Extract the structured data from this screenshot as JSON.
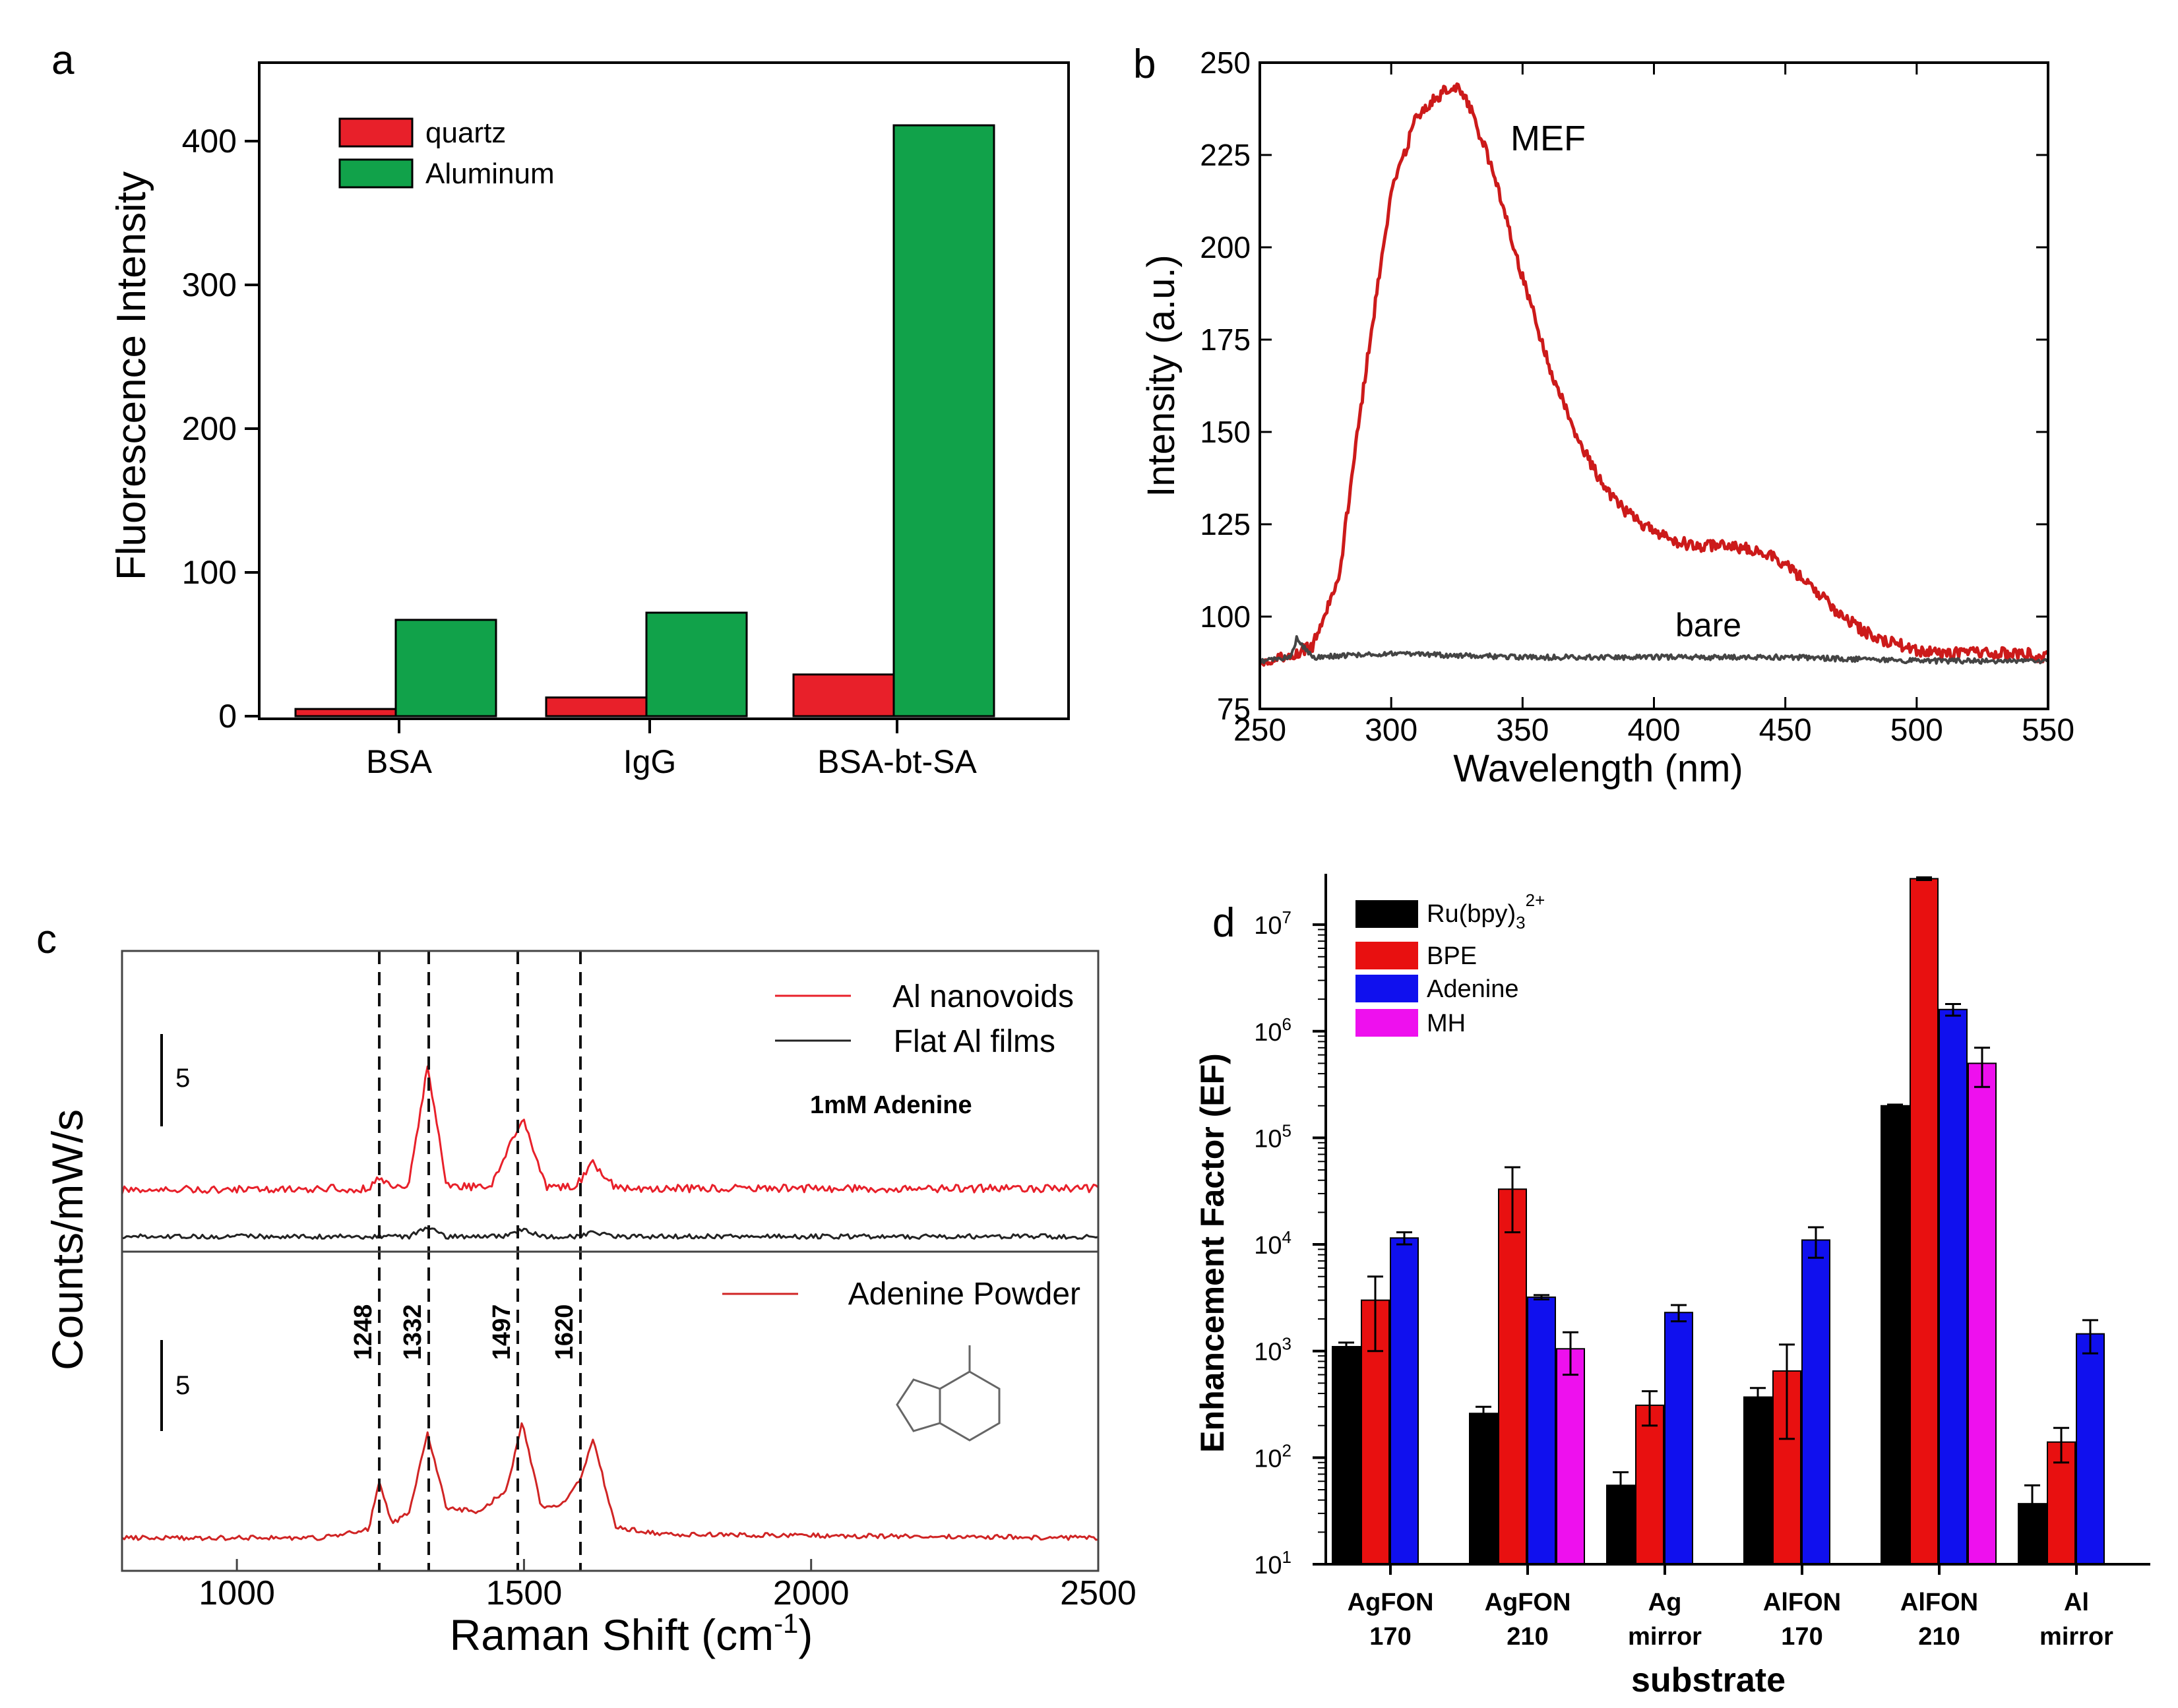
{
  "chart_data": [
    {
      "panel": "a",
      "type": "bar",
      "title": "",
      "xlabel": "",
      "ylabel": "Fluorescence Intensity",
      "ylim": [
        0,
        450
      ],
      "yticks": [
        0,
        100,
        200,
        300,
        400
      ],
      "categories": [
        "BSA",
        "IgG",
        "BSA-bt-SA"
      ],
      "series": [
        {
          "name": "quartz",
          "color": "#e8202a",
          "values": [
            5,
            13,
            29
          ]
        },
        {
          "name": "Aluminum",
          "color": "#11a24a",
          "values": [
            67,
            72,
            411
          ]
        }
      ],
      "legend": "top-left"
    },
    {
      "panel": "b",
      "type": "line",
      "xlabel": "Wavelength (nm)",
      "ylabel": "Intensity (a.u.)",
      "xlim": [
        250,
        550
      ],
      "ylim": [
        75,
        250
      ],
      "xticks": [
        250,
        300,
        350,
        400,
        450,
        500,
        550
      ],
      "yticks": [
        75,
        100,
        125,
        150,
        175,
        200,
        225,
        250
      ],
      "series": [
        {
          "name": "MEF",
          "color": "#cc1a1a",
          "x": [
            250,
            260,
            270,
            280,
            290,
            300,
            310,
            320,
            325,
            330,
            340,
            350,
            360,
            370,
            380,
            390,
            400,
            410,
            420,
            430,
            440,
            450,
            460,
            470,
            480,
            490,
            500,
            510,
            520,
            530,
            540,
            550
          ],
          "y": [
            88,
            89,
            92,
            110,
            165,
            215,
            236,
            242,
            243,
            238,
            218,
            192,
            168,
            150,
            136,
            128,
            123,
            120,
            119,
            119,
            118,
            114,
            108,
            101,
            96,
            93,
            91,
            90,
            90,
            90,
            90,
            89
          ]
        },
        {
          "name": "bare",
          "color": "#444444",
          "x": [
            250,
            262,
            264,
            270,
            300,
            350,
            400,
            450,
            500,
            550
          ],
          "y": [
            88,
            89,
            94,
            89,
            90,
            89,
            89,
            89,
            88,
            88
          ]
        }
      ]
    },
    {
      "panel": "c",
      "type": "line",
      "xlabel": "Raman Shift (cm",
      "xlabel_sup": "-1",
      "xlabel_close": ")",
      "ylabel": "Counts/mW/s",
      "xlim": [
        800,
        2500
      ],
      "xticks": [
        1000,
        1500,
        2000,
        2500
      ],
      "scale_bar_label": "5",
      "annotation": "1mM Adenine",
      "peaks": [
        1248,
        1332,
        1497,
        1620
      ],
      "series": [
        {
          "name": "Al nanovoids",
          "color": "#e8202a",
          "x": [
            800,
            1230,
            1248,
            1270,
            1300,
            1332,
            1365,
            1440,
            1497,
            1540,
            1590,
            1620,
            1660,
            2500
          ],
          "y": [
            0.2,
            0.3,
            0.9,
            0.3,
            0.6,
            7.5,
            0.5,
            0.3,
            4.5,
            0.3,
            0.4,
            1.8,
            0.3,
            0.3
          ]
        },
        {
          "name": "Flat Al films",
          "color": "#222222",
          "x": [
            800,
            1300,
            1332,
            1365,
            1460,
            1497,
            1530,
            1600,
            1620,
            1650,
            2500
          ],
          "y": [
            0,
            0,
            0.6,
            0,
            0,
            0.4,
            0,
            0,
            0.3,
            0,
            0
          ]
        },
        {
          "name": "Adenine Powder",
          "color": "#d02424",
          "x": [
            800,
            1150,
            1200,
            1230,
            1248,
            1270,
            1300,
            1332,
            1365,
            1420,
            1470,
            1497,
            1530,
            1570,
            1600,
            1620,
            1660,
            1750,
            2500
          ],
          "y": [
            0,
            0,
            0.3,
            0.5,
            3.4,
            0.8,
            1.5,
            6.1,
            1.8,
            1.5,
            2.8,
            6.8,
            1.8,
            2.0,
            3.5,
            5.8,
            0.6,
            0.2,
            0
          ]
        }
      ]
    },
    {
      "panel": "d",
      "type": "bar",
      "xlabel": "substrate",
      "ylabel": "Enhancement Factor (EF)",
      "yscale": "log",
      "ylim": [
        10,
        30000000
      ],
      "ytick_bases": [
        "10",
        "10",
        "10",
        "10",
        "10",
        "10",
        "10"
      ],
      "ytick_exps": [
        "1",
        "2",
        "3",
        "4",
        "5",
        "6",
        "7"
      ],
      "categories": [
        {
          "line1": "AgFON",
          "line2": "170"
        },
        {
          "line1": "AgFON",
          "line2": "210"
        },
        {
          "line1": "Ag",
          "line2": "mirror"
        },
        {
          "line1": "AlFON",
          "line2": "170"
        },
        {
          "line1": "AlFON",
          "line2": "210"
        },
        {
          "line1": "Al",
          "line2": "mirror"
        }
      ],
      "series": [
        {
          "name": "Ru(bpy)",
          "name_sub": "3",
          "name_sup": "2+",
          "color": "#000000",
          "values": [
            1100,
            260,
            55,
            370,
            200000,
            37
          ],
          "err": [
            100,
            40,
            18,
            80,
            5000,
            18
          ]
        },
        {
          "name": "BPE",
          "color": "#e81010",
          "values": [
            3000,
            33000,
            310,
            650,
            27000000,
            140
          ],
          "err": [
            2000,
            20000,
            110,
            500,
            800000,
            50
          ]
        },
        {
          "name": "Adenine",
          "color": "#1010ee",
          "values": [
            11500,
            3200,
            2300,
            11000,
            1600000,
            1450
          ],
          "err": [
            1500,
            150,
            400,
            3500,
            200000,
            500
          ]
        },
        {
          "name": "MH",
          "color": "#ee10ee",
          "values": [
            null,
            1050,
            null,
            null,
            500000,
            null
          ],
          "err": [
            null,
            450,
            null,
            null,
            200000,
            null
          ]
        }
      ],
      "legend": "top-left"
    }
  ],
  "panels": {
    "a": {
      "label": "a"
    },
    "b": {
      "label": "b",
      "series_label_1": "MEF",
      "series_label_2": "bare"
    },
    "c": {
      "label": "c"
    },
    "d": {
      "label": "d"
    }
  }
}
